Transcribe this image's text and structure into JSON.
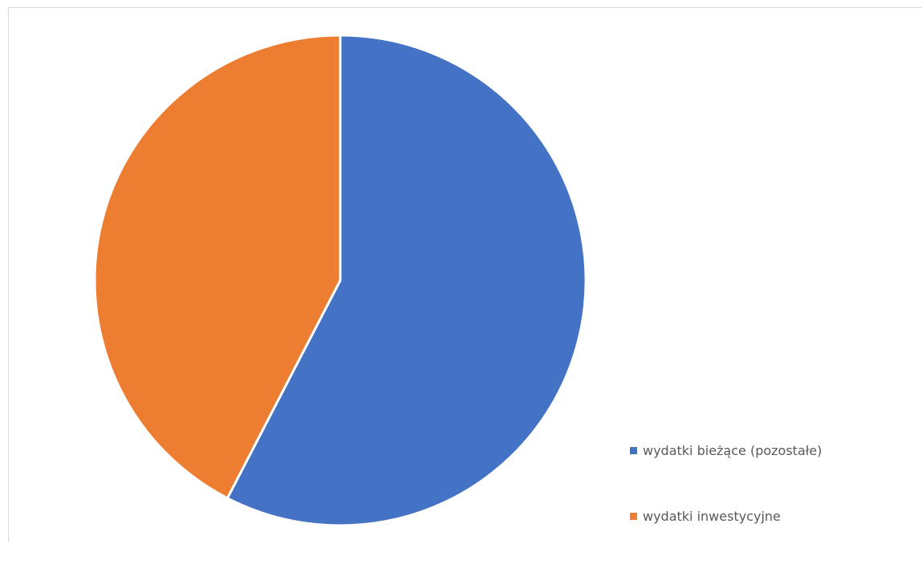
{
  "chart_data": {
    "type": "pie",
    "title": "",
    "categories": [
      "wydatki bieżące (pozostałe)",
      "wydatki inwestycyjne"
    ],
    "values": [
      57.6,
      42.4
    ],
    "colors": [
      "#4472c4",
      "#ed7d31"
    ],
    "start_angle_deg": 0,
    "direction": "clockwise",
    "legend_position": "bottom-right"
  }
}
